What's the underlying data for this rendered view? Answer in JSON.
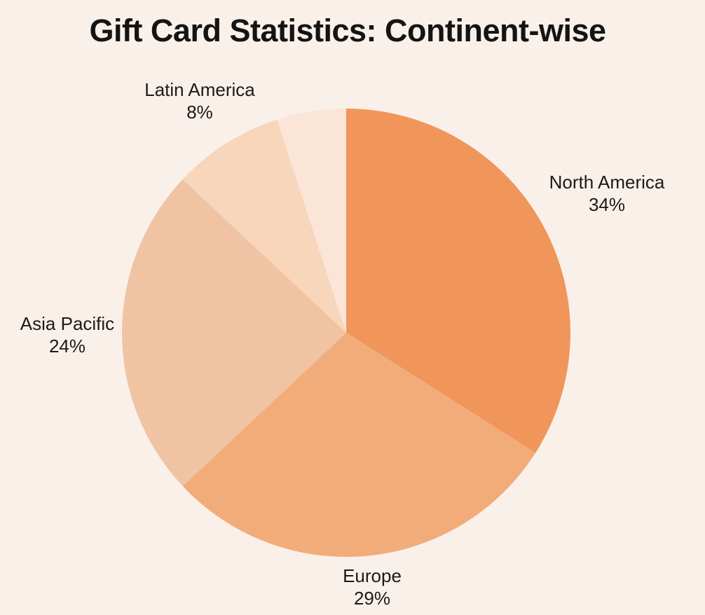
{
  "title": "Gift Card Statistics: Continent-wise",
  "colors": {
    "background": "#FAF0EA",
    "title_text": "#141414",
    "label_text": "#1A1A1A"
  },
  "chart_data": {
    "type": "pie",
    "title": "Gift Card Statistics: Continent-wise",
    "start_angle_deg": 0,
    "direction": "clockwise",
    "legend": "none",
    "label_style": "outside, two lines (name above percent)",
    "segments": [
      {
        "label": "North America",
        "percent": 34,
        "percent_label": "34%",
        "color": "#F0965A"
      },
      {
        "label": "Europe",
        "percent": 29,
        "percent_label": "29%",
        "color": "#F2AC7A"
      },
      {
        "label": "Asia Pacific",
        "percent": 24,
        "percent_label": "24%",
        "color": "#F0C4A2"
      },
      {
        "label": "Latin America",
        "percent": 8,
        "percent_label": "8%",
        "color": "#F7D6BB"
      },
      {
        "label": "",
        "percent": 5,
        "percent_label": "",
        "color": "#FAE5D6",
        "unlabeled": true
      }
    ]
  }
}
